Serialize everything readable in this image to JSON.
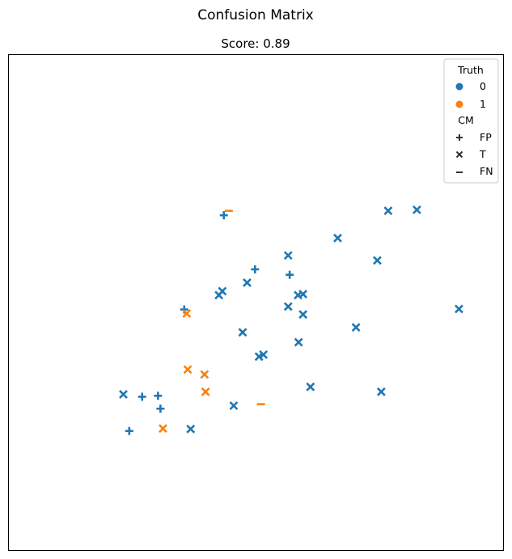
{
  "chart_data": {
    "type": "scatter",
    "suptitle": "Confusion Matrix",
    "title": "Score: 0.89",
    "xlabel": "",
    "ylabel": "",
    "xlim": [
      0,
      10
    ],
    "ylim": [
      0,
      10
    ],
    "grid": false,
    "axis_ticks": false,
    "legend": {
      "placement": "top-right",
      "hue_title": "Truth",
      "hue_entries": [
        {
          "label": "0",
          "color": "#1f77b4"
        },
        {
          "label": "1",
          "color": "#ff7f0e"
        }
      ],
      "style_title": "CM",
      "style_entries": [
        {
          "label": "FP",
          "marker": "plus"
        },
        {
          "label": "T",
          "marker": "x"
        },
        {
          "label": "FN",
          "marker": "minus"
        }
      ]
    },
    "points": [
      {
        "x": 4.35,
        "y": 6.76,
        "truth": "0",
        "cm": "FP"
      },
      {
        "x": 5.65,
        "y": 5.95,
        "truth": "0",
        "cm": "T"
      },
      {
        "x": 6.65,
        "y": 6.3,
        "truth": "0",
        "cm": "T"
      },
      {
        "x": 7.67,
        "y": 6.85,
        "truth": "0",
        "cm": "T"
      },
      {
        "x": 8.25,
        "y": 6.87,
        "truth": "0",
        "cm": "T"
      },
      {
        "x": 5.65,
        "y": 4.92,
        "truth": "0",
        "cm": "T"
      },
      {
        "x": 5.95,
        "y": 4.76,
        "truth": "0",
        "cm": "T"
      },
      {
        "x": 4.98,
        "y": 5.67,
        "truth": "0",
        "cm": "FP"
      },
      {
        "x": 5.68,
        "y": 5.56,
        "truth": "0",
        "cm": "FP"
      },
      {
        "x": 4.82,
        "y": 5.4,
        "truth": "0",
        "cm": "T"
      },
      {
        "x": 4.32,
        "y": 5.23,
        "truth": "0",
        "cm": "T"
      },
      {
        "x": 4.25,
        "y": 5.15,
        "truth": "0",
        "cm": "T"
      },
      {
        "x": 5.85,
        "y": 5.15,
        "truth": "0",
        "cm": "T"
      },
      {
        "x": 5.95,
        "y": 5.17,
        "truth": "0",
        "cm": "T"
      },
      {
        "x": 7.45,
        "y": 5.85,
        "truth": "0",
        "cm": "T"
      },
      {
        "x": 9.1,
        "y": 4.87,
        "truth": "0",
        "cm": "T"
      },
      {
        "x": 3.55,
        "y": 4.86,
        "truth": "0",
        "cm": "FP"
      },
      {
        "x": 4.73,
        "y": 4.4,
        "truth": "0",
        "cm": "T"
      },
      {
        "x": 5.15,
        "y": 3.95,
        "truth": "0",
        "cm": "T"
      },
      {
        "x": 5.06,
        "y": 3.91,
        "truth": "0",
        "cm": "T"
      },
      {
        "x": 7.02,
        "y": 4.5,
        "truth": "0",
        "cm": "T"
      },
      {
        "x": 5.86,
        "y": 4.2,
        "truth": "0",
        "cm": "T"
      },
      {
        "x": 2.32,
        "y": 3.15,
        "truth": "0",
        "cm": "T"
      },
      {
        "x": 2.7,
        "y": 3.1,
        "truth": "0",
        "cm": "FP"
      },
      {
        "x": 3.02,
        "y": 3.12,
        "truth": "0",
        "cm": "FP"
      },
      {
        "x": 3.07,
        "y": 2.86,
        "truth": "0",
        "cm": "FP"
      },
      {
        "x": 2.44,
        "y": 2.41,
        "truth": "0",
        "cm": "FP"
      },
      {
        "x": 3.68,
        "y": 2.45,
        "truth": "0",
        "cm": "T"
      },
      {
        "x": 4.55,
        "y": 2.92,
        "truth": "0",
        "cm": "T"
      },
      {
        "x": 6.1,
        "y": 3.3,
        "truth": "0",
        "cm": "T"
      },
      {
        "x": 7.53,
        "y": 3.2,
        "truth": "0",
        "cm": "T"
      },
      {
        "x": 4.45,
        "y": 6.85,
        "truth": "1",
        "cm": "FN"
      },
      {
        "x": 3.6,
        "y": 4.78,
        "truth": "1",
        "cm": "T"
      },
      {
        "x": 3.62,
        "y": 3.65,
        "truth": "1",
        "cm": "T"
      },
      {
        "x": 3.96,
        "y": 3.55,
        "truth": "1",
        "cm": "T"
      },
      {
        "x": 3.98,
        "y": 3.2,
        "truth": "1",
        "cm": "T"
      },
      {
        "x": 5.1,
        "y": 2.95,
        "truth": "1",
        "cm": "FN"
      },
      {
        "x": 3.12,
        "y": 2.46,
        "truth": "1",
        "cm": "T"
      }
    ]
  }
}
